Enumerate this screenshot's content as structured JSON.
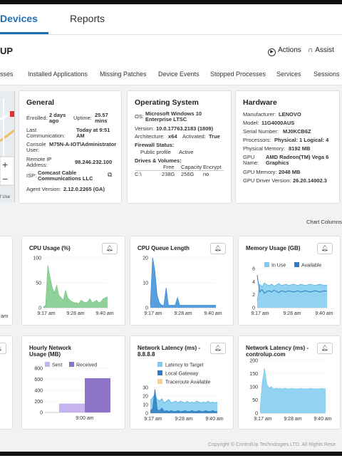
{
  "nav": {
    "devices": "Devices",
    "reports": "Reports"
  },
  "title": "UP",
  "actions": {
    "actions_label": "Actions",
    "assist_label": "Assist"
  },
  "subtabs": [
    "sses",
    "Installed Applications",
    "Missing Patches",
    "Device Events",
    "Stopped Processes",
    "Services",
    "Sessions"
  ],
  "general": {
    "heading": "General",
    "enrolled_label": "Enrolled:",
    "enrolled_value": "2 days ago",
    "uptime_label": "Uptime:",
    "uptime_value": "25.57 mins",
    "lastcomm_label": "Last Communication:",
    "lastcomm_value": "Today at 9:51 AM",
    "console_label": "Console User:",
    "console_value": "M75N-A-IOT\\Administrator",
    "remoteip_label": "Remote IP Address:",
    "remoteip_value": "98.246.232.100",
    "isp_label": "ISP:",
    "isp_value": "Comcast Cable Communications LLC",
    "agent_label": "Agent Version:",
    "agent_value": "2.12.0.2265 (GA)"
  },
  "os": {
    "heading": "Operating System",
    "os_label": "OS:",
    "os_value": "Microsoft Windows 10 Enterprise LTSC",
    "version_label": "Version:",
    "version_value": "10.0.17763.2183 (1809)",
    "arch_label": "Architecture:",
    "arch_value": "x64",
    "activated_label": "Activated:",
    "activated_value": "True",
    "firewall_label": "Firewall Status:",
    "firewall_profile": "Public profile",
    "firewall_state": "Active",
    "drives_label": "Drives & Volumes:",
    "drive_headers": [
      "Free",
      "Capacity",
      "Encrypt"
    ],
    "drive_row": [
      "C:\\",
      "238G",
      "256G",
      "no"
    ]
  },
  "hardware": {
    "heading": "Hardware",
    "manufacturer_label": "Manufacturer:",
    "manufacturer_value": "LENOVO",
    "model_label": "Model:",
    "model_value": "11G4000AUS",
    "serial_label": "Serial Number:",
    "serial_value": "MJ0KCB6Z",
    "processors_label": "Processors:",
    "processors_value": "Physical: 1  Logical: 4",
    "physmem_label": "Physical Memory:",
    "physmem_value": "8192 MB",
    "gpu_label": "GPU Name:",
    "gpu_value": "AMD Radeon(TM) Vega 6 Graphics",
    "gpumem_label": "GPU Memory:",
    "gpumem_value": "2048 MB",
    "gpudriver_label": "GPU Driver Version:",
    "gpudriver_value": "26.20.14002.3"
  },
  "map_label": "f Use",
  "chart_columns_label": "Chart Columns",
  "time_labels": [
    "9:17 am",
    "9:28 am",
    "9:40 am"
  ],
  "left_fragment_time": "am",
  "copyright": "Copyright © ControlUp Technologies LTD. All Rights Rese",
  "chart_data": [
    {
      "type": "area",
      "title": "CPU Usage (%)",
      "color": "#7cc88a",
      "ylim": [
        0,
        100
      ],
      "yticks": [
        0,
        50,
        100
      ],
      "series": [
        {
          "values": [
            2,
            5,
            85,
            60,
            40,
            30,
            45,
            25,
            20,
            15,
            35,
            20,
            15,
            12,
            10,
            10,
            8,
            15,
            12,
            10,
            12,
            18,
            10,
            12,
            15,
            10,
            12,
            18,
            20,
            22
          ]
        }
      ]
    },
    {
      "type": "area",
      "title": "CPU Queue Length",
      "color": "#3a8ed8",
      "ylim": [
        0,
        20
      ],
      "yticks": [
        0,
        10,
        20
      ],
      "series": [
        {
          "values": [
            1,
            20,
            15,
            5,
            2,
            1,
            1,
            8,
            1,
            1,
            1,
            1,
            4,
            1,
            1,
            1,
            1,
            1,
            1,
            1,
            1,
            1,
            1,
            1,
            1,
            1,
            1,
            1,
            1,
            1
          ]
        }
      ]
    },
    {
      "type": "area",
      "title": "Memory Usage (GB)",
      "legend": [
        "In Use",
        "Available"
      ],
      "colors": [
        "#7fcbf0",
        "#2e7cc4"
      ],
      "ylim": [
        0,
        6
      ],
      "yticks": [
        0,
        2,
        4,
        6
      ],
      "series": [
        {
          "name": "In Use",
          "values": [
            1,
            3.6,
            3.2,
            3.8,
            3.5,
            3.4,
            3.6,
            3.3,
            3.5,
            3.7,
            3.4,
            3.5,
            3.6,
            3.4,
            3.5,
            3.6,
            3.5,
            3.4,
            3.6,
            3.5,
            3.4,
            3.5,
            3.6,
            3.5,
            3.4,
            3.5,
            3.6,
            3.5,
            3.4,
            3.5
          ]
        },
        {
          "name": "Available",
          "values": [
            5,
            2.4,
            2.8,
            2.2,
            2.5,
            2.6,
            2.4,
            2.7,
            2.5,
            2.3,
            2.6,
            2.5,
            2.4,
            2.6,
            2.5,
            2.4,
            2.5,
            2.6,
            2.4,
            2.5,
            2.6,
            2.5,
            2.4,
            2.5,
            2.6,
            2.5,
            2.4,
            2.5,
            2.6,
            2.5
          ]
        }
      ]
    },
    {
      "type": "bar",
      "title": "Hourly Network Usage (MB)",
      "legend": [
        "Sent",
        "Received"
      ],
      "colors": [
        "#c5b4f0",
        "#8d74c8"
      ],
      "ylim": [
        0,
        800
      ],
      "yticks": [
        0,
        200,
        400,
        600,
        800
      ],
      "categories": [
        "9:00 am"
      ],
      "series": [
        {
          "name": "Sent",
          "values": [
            160
          ]
        },
        {
          "name": "Received",
          "values": [
            620
          ]
        }
      ]
    },
    {
      "type": "area",
      "title": "Network Latency (ms) - 8.8.8.8",
      "legend": [
        "Latency to Target",
        "Local Gateway",
        "Traceroute Available"
      ],
      "colors": [
        "#7fcbf0",
        "#2e7cc4",
        "#f6cf92"
      ],
      "ylim": [
        0,
        30
      ],
      "yticks": [
        0,
        10,
        20,
        30
      ],
      "series": [
        {
          "name": "Latency to Target",
          "values": [
            15,
            18,
            22,
            16,
            14,
            17,
            12,
            14,
            16,
            12,
            13,
            14,
            12,
            14,
            13,
            12,
            14,
            12,
            13,
            12,
            14,
            13,
            12,
            13,
            12,
            14,
            12,
            13,
            12,
            13
          ]
        },
        {
          "name": "Local Gateway",
          "values": [
            3,
            5,
            28,
            4,
            3,
            6,
            2,
            3,
            2,
            3,
            2,
            2,
            3,
            2,
            2,
            3,
            2,
            2,
            3,
            2,
            2,
            3,
            2,
            2,
            3,
            2,
            2,
            3,
            2,
            2
          ]
        }
      ]
    },
    {
      "type": "area",
      "title": "Network Latency (ms) - controlup.com",
      "color": "#7fcbf0",
      "ylim": [
        0,
        200
      ],
      "yticks": [
        0,
        50,
        100,
        150,
        200
      ],
      "series": [
        {
          "values": [
            10,
            120,
            170,
            110,
            95,
            100,
            92,
            95,
            93,
            94,
            92,
            95,
            93,
            92,
            94,
            93,
            92,
            93,
            94,
            92,
            93,
            92,
            94,
            93,
            92,
            93,
            92,
            94,
            93,
            92
          ]
        }
      ]
    }
  ]
}
